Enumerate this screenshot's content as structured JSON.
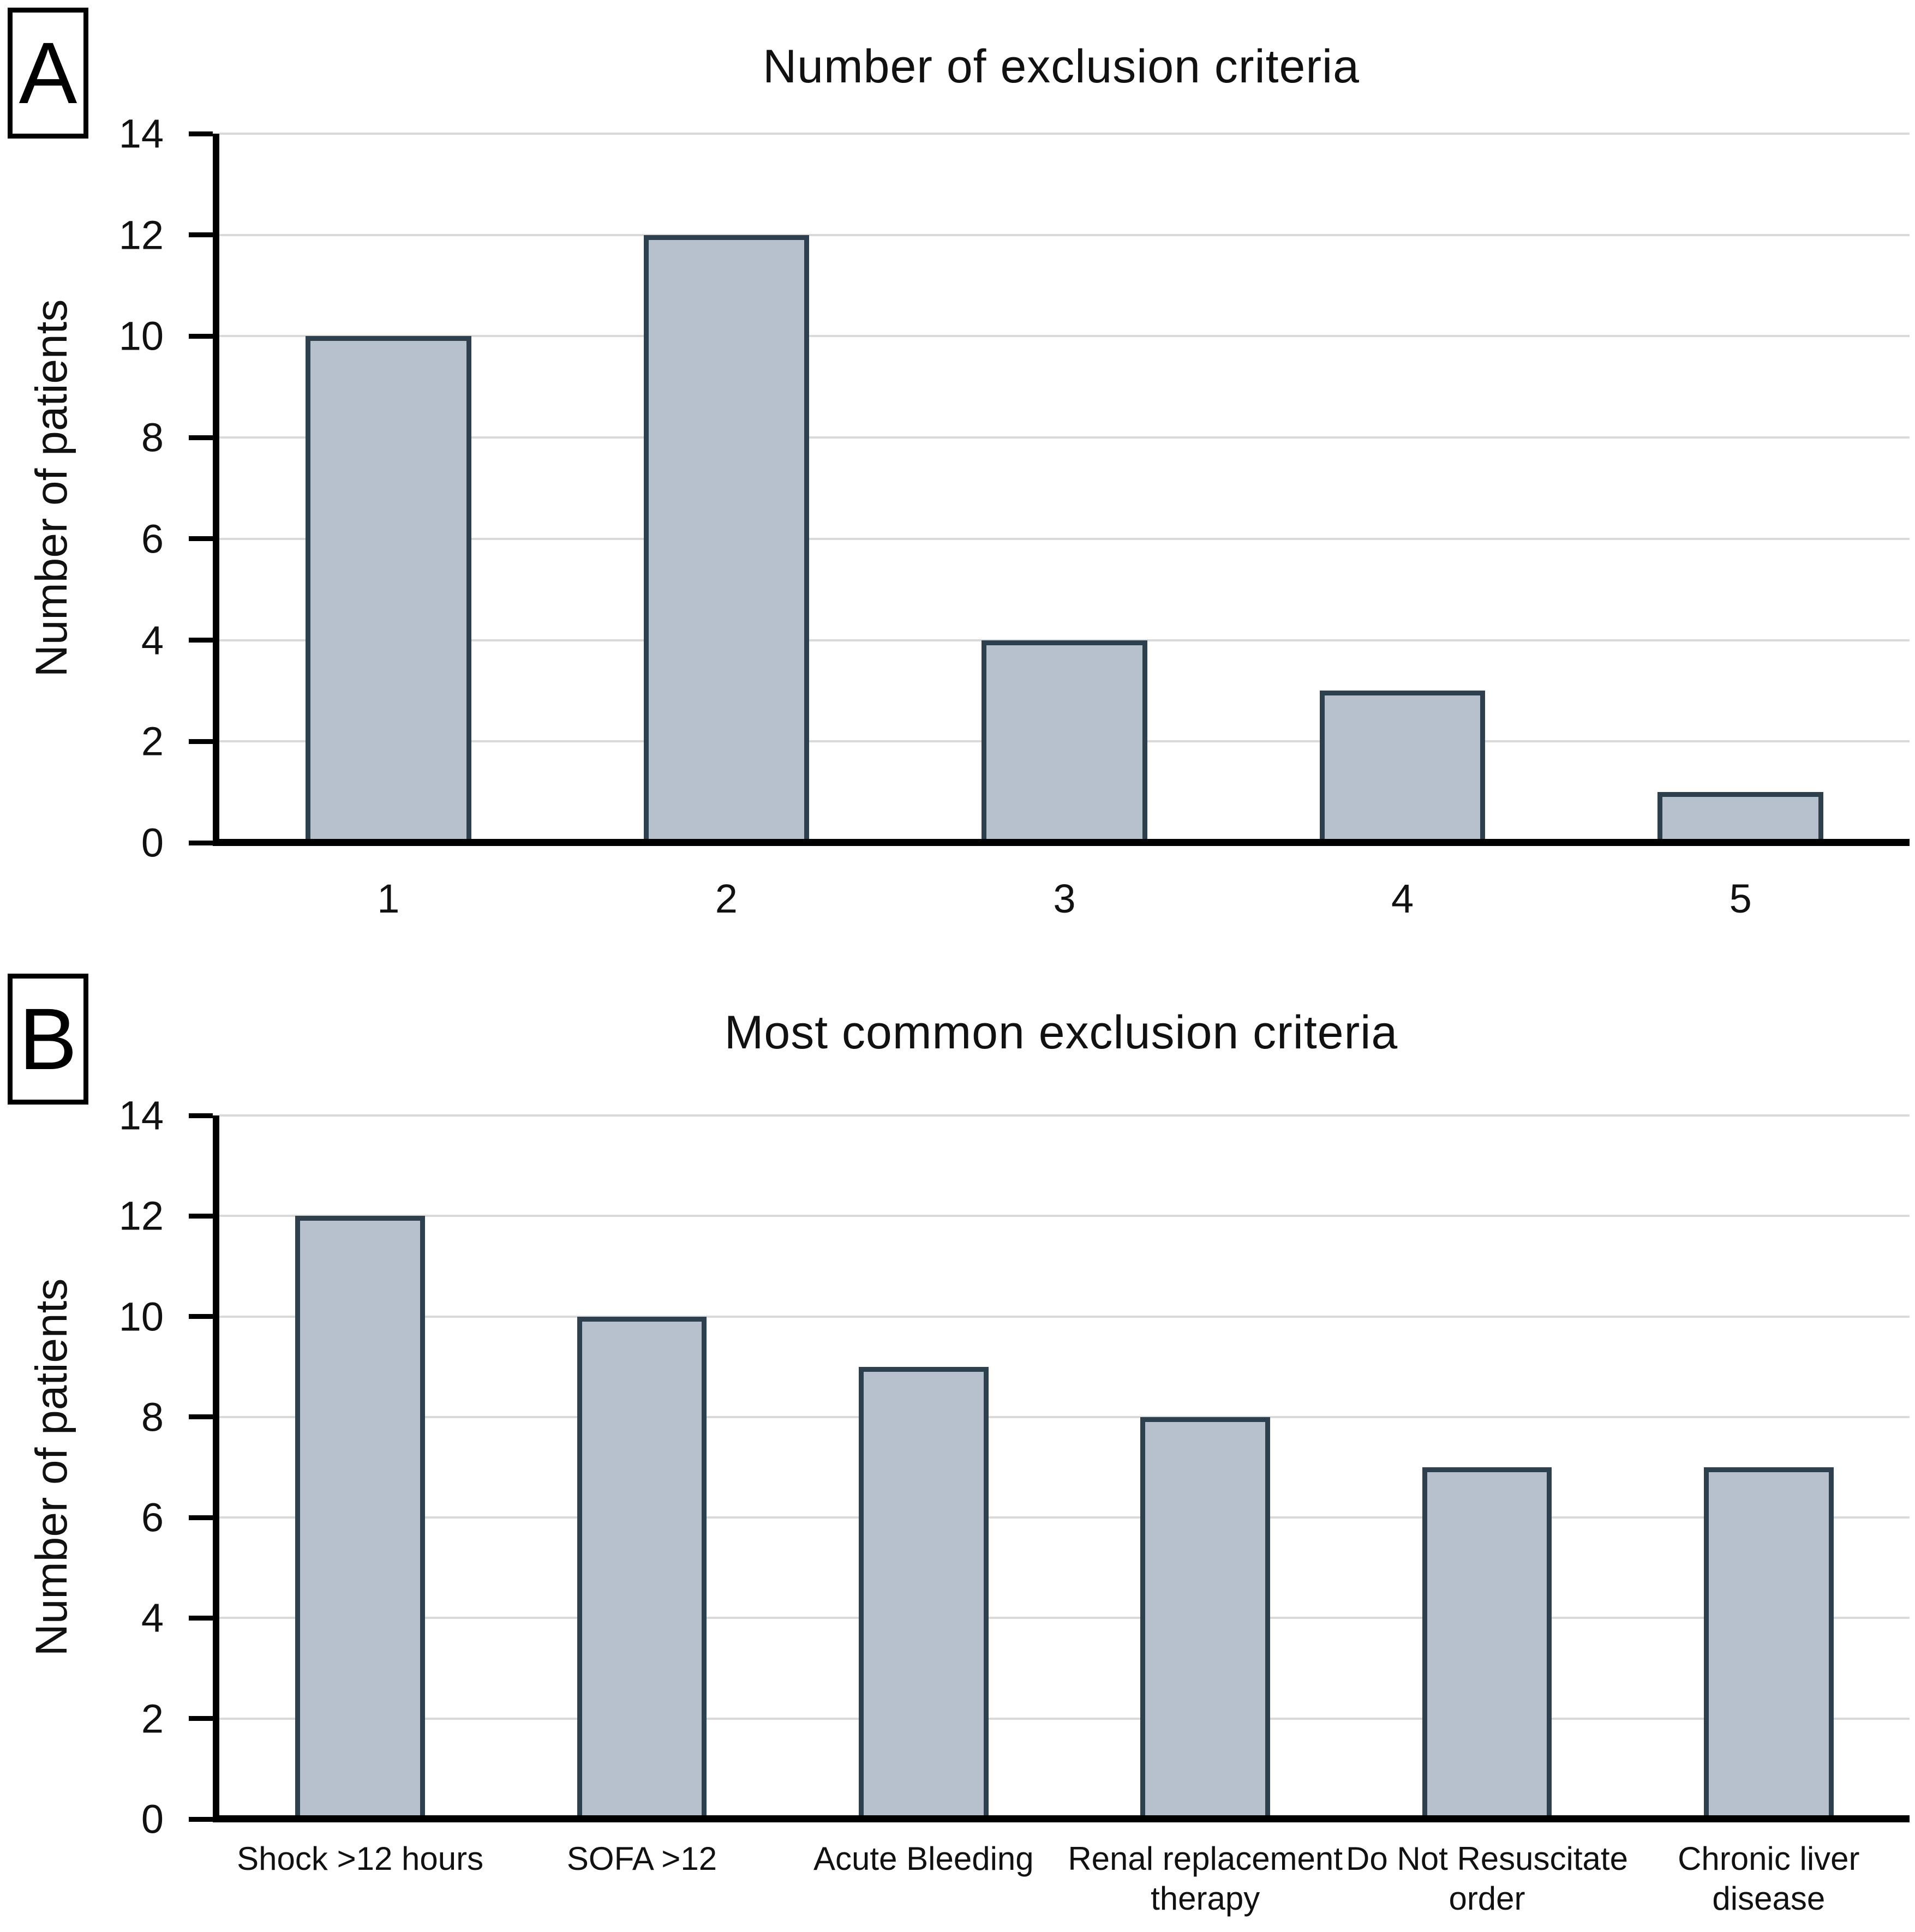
{
  "colors": {
    "bar_fill": "#b6c1cd",
    "bar_border": "#2e3f4d",
    "gridline": "#d9d9d9",
    "axis": "#000000",
    "text": "#111111"
  },
  "chart_data": [
    {
      "type": "bar",
      "panel_label": "A",
      "title": "Number of exclusion criteria",
      "xlabel": "",
      "ylabel": "Number of patients",
      "categories": [
        "1",
        "2",
        "3",
        "4",
        "5"
      ],
      "values": [
        10,
        12,
        4,
        3,
        1
      ],
      "ylim": [
        0,
        14
      ],
      "ytick_step": 2,
      "grid": "horizontal",
      "legend": "none",
      "bar_width_frac": 0.49
    },
    {
      "type": "bar",
      "panel_label": "B",
      "title": "Most common exclusion criteria",
      "xlabel": "",
      "ylabel": "Number of patients",
      "categories": [
        "Shock >12 hours",
        "SOFA >12",
        "Acute Bleeding",
        "Renal replacement therapy",
        "Do Not Resuscitate order",
        "Chronic liver disease"
      ],
      "categories_wrapped": [
        [
          "Shock >12 hours"
        ],
        [
          "SOFA >12"
        ],
        [
          "Acute Bleeding"
        ],
        [
          "Renal replacement",
          "therapy"
        ],
        [
          "Do Not Resuscitate",
          "order"
        ],
        [
          "Chronic liver",
          "disease"
        ]
      ],
      "values": [
        12,
        10,
        9,
        8,
        7,
        7
      ],
      "ylim": [
        0,
        14
      ],
      "ytick_step": 2,
      "grid": "horizontal",
      "legend": "none",
      "bar_width_frac": 0.46
    }
  ]
}
